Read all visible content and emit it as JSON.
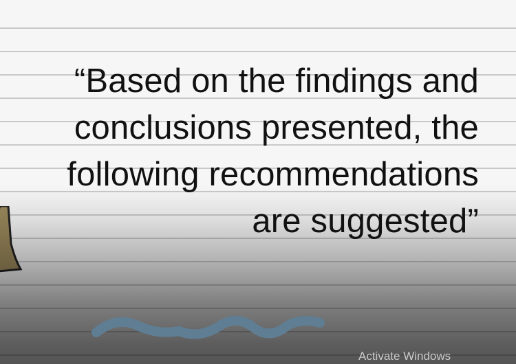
{
  "slide": {
    "quote_lines": [
      "“Based on the findings and",
      "conclusions presented, the",
      "following recommendations",
      "are suggested”"
    ]
  },
  "overlay": {
    "watermark": "Activate Windows"
  },
  "colors": {
    "paper": "#f6f6f6",
    "rule_line": "#c9c9c9",
    "text": "#111111",
    "bell_fill": "#9c8a5c",
    "squiggle": "#5f7e93"
  },
  "icons": {
    "bell": "bell-illustration",
    "wave": "squiggle-line"
  }
}
